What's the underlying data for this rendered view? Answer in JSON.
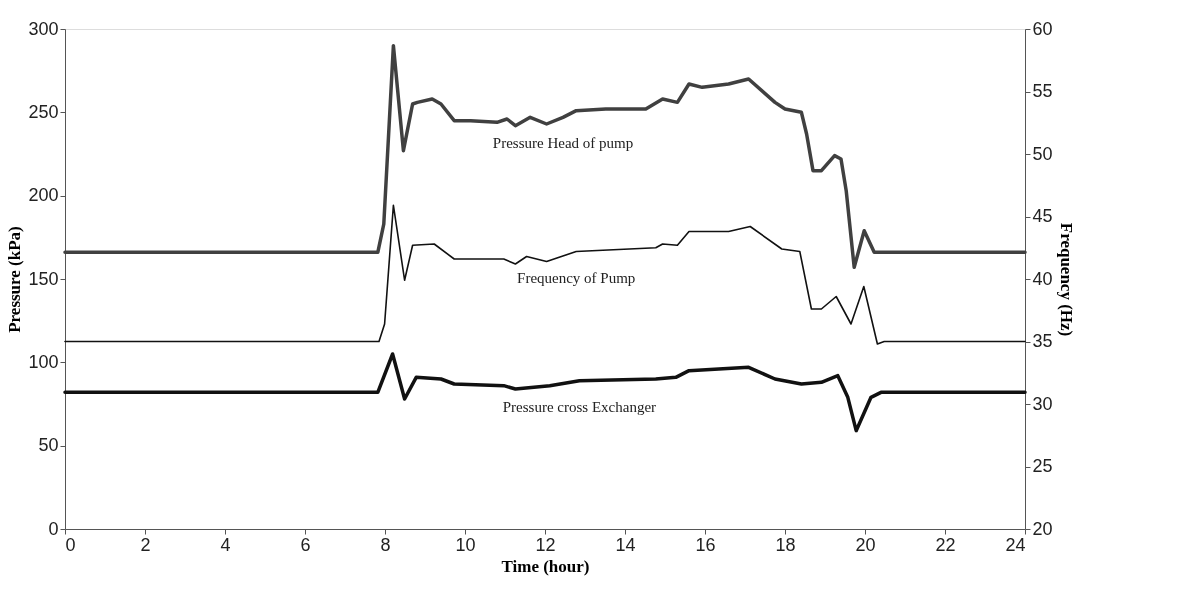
{
  "chart_data": {
    "type": "line",
    "xlabel": "Time (hour)",
    "ylabel": "Pressure (kPa)",
    "y2label": "Frequency (Hz)",
    "xlim": [
      0,
      24
    ],
    "xticks": [
      0,
      2,
      4,
      6,
      8,
      10,
      12,
      14,
      16,
      18,
      20,
      22,
      24
    ],
    "ylim": [
      0,
      300
    ],
    "yticks": [
      0,
      50,
      100,
      150,
      200,
      250,
      300
    ],
    "y2lim": [
      20,
      60
    ],
    "y2ticks": [
      20,
      25,
      30,
      35,
      40,
      45,
      50,
      55,
      60
    ],
    "grid": false,
    "marker": "none",
    "line_style": "solid",
    "series": [
      {
        "name": "Pressure Head of pump",
        "color": "#404040",
        "x": [
          0,
          7.82,
          7.97,
          8.21,
          8.46,
          8.69,
          8.81,
          9.18,
          9.4,
          9.73,
          10.14,
          10.8,
          11.05,
          11.26,
          11.63,
          12.04,
          12.45,
          12.78,
          13.52,
          14.52,
          14.94,
          15.31,
          15.6,
          15.93,
          16.59,
          17.09,
          17.75,
          18.0,
          18.41,
          18.54,
          18.7,
          18.91,
          19.24,
          19.4,
          19.53,
          19.73,
          19.98,
          20.23,
          24
        ],
        "values": [
          166,
          166,
          183,
          290,
          227,
          255,
          256,
          258,
          255,
          245,
          245,
          244,
          246,
          242,
          247,
          243,
          247,
          251,
          252,
          252,
          258,
          256,
          267,
          265,
          267,
          270,
          256,
          252,
          250,
          237,
          215,
          215,
          224,
          222,
          203,
          157,
          179,
          166,
          166
        ]
      },
      {
        "name": "Frequency of Pump",
        "color": "#111111",
        "axis": "y2",
        "x": [
          0,
          7.85,
          7.99,
          8.21,
          8.49,
          8.69,
          9.23,
          9.73,
          10.97,
          11.26,
          11.54,
          12.04,
          12.78,
          14.77,
          14.94,
          15.31,
          15.6,
          16.59,
          17.13,
          17.92,
          18.37,
          18.66,
          18.91,
          19.28,
          19.65,
          19.97,
          20.31,
          20.48,
          24
        ],
        "values": [
          35,
          35,
          36.4,
          45.9,
          39.9,
          42.7,
          42.8,
          41.6,
          41.6,
          41.2,
          41.8,
          41.4,
          42.2,
          42.5,
          42.8,
          42.7,
          43.8,
          43.8,
          44.2,
          42.4,
          42.2,
          37.6,
          37.6,
          38.6,
          36.4,
          39.4,
          34.8,
          35,
          35
        ]
      },
      {
        "name": "Pressure cross Exchanger",
        "color": "#111111",
        "x": [
          0,
          7.82,
          8.19,
          8.49,
          8.78,
          9.4,
          9.73,
          10.97,
          11.26,
          12.12,
          12.86,
          14.77,
          15.27,
          15.6,
          17.09,
          17.75,
          18.41,
          18.91,
          19.32,
          19.57,
          19.78,
          20.15,
          20.4,
          24
        ],
        "values": [
          82,
          82,
          105,
          78,
          91,
          90,
          87,
          86,
          84,
          86,
          89,
          90,
          91,
          95,
          97,
          90,
          87,
          88,
          92,
          79,
          59,
          79,
          82,
          82
        ]
      }
    ]
  }
}
